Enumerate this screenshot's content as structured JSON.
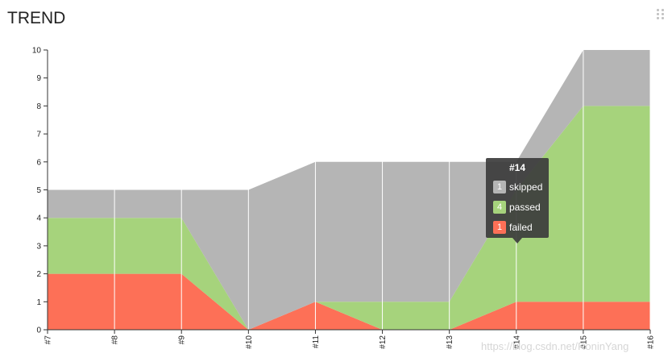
{
  "header": {
    "title": "TREND"
  },
  "chart_data": {
    "type": "area",
    "stacked": true,
    "categories": [
      "#7",
      "#8",
      "#9",
      "#10",
      "#11",
      "#12",
      "#13",
      "#14",
      "#15",
      "#16"
    ],
    "series": [
      {
        "name": "failed",
        "color": "#fd7057",
        "values": [
          2,
          2,
          2,
          0,
          1,
          0,
          0,
          1,
          1,
          1
        ]
      },
      {
        "name": "passed",
        "color": "#a6d37c",
        "values": [
          2,
          2,
          2,
          0,
          0,
          1,
          1,
          4,
          7,
          7
        ]
      },
      {
        "name": "skipped",
        "color": "#b5b5b5",
        "values": [
          1,
          1,
          1,
          5,
          5,
          5,
          5,
          1,
          2,
          2
        ]
      }
    ],
    "ylim": [
      0,
      10
    ],
    "yticks": [
      0,
      1,
      2,
      3,
      4,
      5,
      6,
      7,
      8,
      9,
      10
    ],
    "grid": "vertical",
    "tooltip": {
      "title": "#14",
      "rows": [
        {
          "count": "1",
          "label": "skipped",
          "color": "#b5b5b5"
        },
        {
          "count": "4",
          "label": "passed",
          "color": "#a6d37c"
        },
        {
          "count": "1",
          "label": "failed",
          "color": "#fd7057"
        }
      ]
    }
  },
  "watermark": "https://blog.csdn.net/RoninYang"
}
